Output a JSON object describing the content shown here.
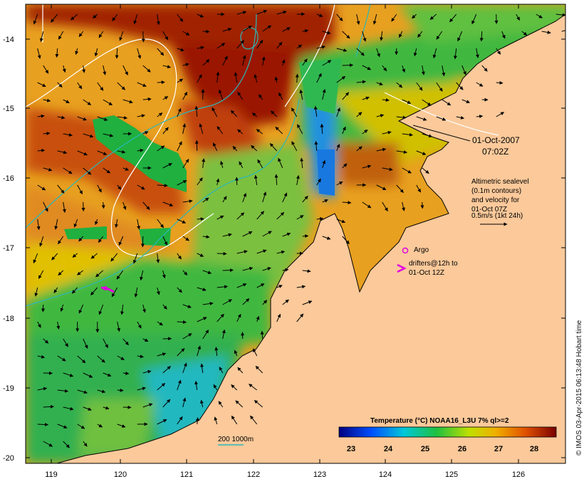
{
  "annotation": {
    "date": "01-Oct-2007",
    "time": "07:02Z",
    "altimetry_lines": [
      "Altimetric sealevel",
      "(0.1m contours)",
      "and velocity for",
      "01-Oct 07Z",
      "0.5m/s (1kt 24h)"
    ]
  },
  "legend": {
    "argo_label": "Argo",
    "drifters_line1": "drifters@12h to",
    "drifters_line2": "01-Oct 12Z",
    "isobath_label": "200  1000m"
  },
  "colorbar": {
    "title": "Temperature (°C) NOAA16_L3U 7% ql>=2",
    "ticks": [
      "23",
      "24",
      "25",
      "26",
      "27",
      "28"
    ]
  },
  "axes": {
    "y_ticks": [
      "-14",
      "-15",
      "-16",
      "-17",
      "-18",
      "-19",
      "-20"
    ],
    "x_ticks": [
      "119",
      "120",
      "121",
      "122",
      "123",
      "124",
      "125",
      "126"
    ]
  },
  "credit": "© IMOS 03-Apr-2015 06:13:48 Hobart time",
  "colors": {
    "land": "#fbc99a",
    "isobath": "#2ab8b8",
    "sealevel_contour": "#ffffff",
    "argo_marker": "#e000e0",
    "colorbar_stops": [
      "#000080",
      "#0060ff",
      "#00c8d8",
      "#20c040",
      "#c0e000",
      "#f0a000",
      "#e05000",
      "#800000"
    ]
  }
}
